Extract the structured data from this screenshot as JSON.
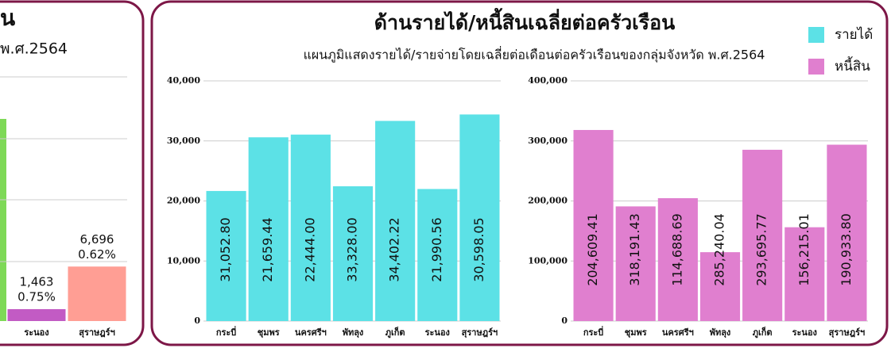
{
  "header": {
    "title": "ด้านรายได้/หนี้สินเฉลี่ยต่อครัวเรือน",
    "subtitle": "แผนภูมิแสดงรายได้/รายจ่ายโดยเฉลี่ยต่อเดือนต่อครัวเรือนของกลุ่มจังหวัด พ.ศ.2564",
    "legend": [
      {
        "name": "รายได้",
        "color": "#5ce1e6"
      },
      {
        "name": "หนี้สิน",
        "color": "#e07fcf"
      }
    ]
  },
  "left_panel": {
    "title": "น",
    "subtitle": "พ.ศ.2564"
  },
  "chart_data": [
    {
      "type": "bar",
      "categories": [
        "ระนอง",
        "สุราษฎร์ฯ"
      ],
      "values": [
        1463,
        6696
      ],
      "value_labels": [
        "1,463",
        "6,696"
      ],
      "percent_labels": [
        "0.75%",
        "0.62%"
      ],
      "colors": [
        "#c25bc4",
        "#ff9e94"
      ],
      "ylim": [
        0,
        30000
      ]
    },
    {
      "type": "bar",
      "categories": [
        "กระบี่",
        "ชุมพร",
        "นครศรีฯ",
        "พัทลุง",
        "ภูเก็ต",
        "ระนอง",
        "สุราษฎร์ฯ"
      ],
      "values": [
        21659.44,
        30598.05,
        31052.8,
        22444.0,
        33328.0,
        21990.56,
        34402.22
      ],
      "annotations": [
        "31,052.80",
        "21,659.44",
        "22,444.00",
        "33,328.00",
        "34,402.22",
        "21,990.56",
        "30,598.05"
      ],
      "color": "#5ce1e6",
      "ylim": [
        0,
        40000
      ],
      "yticks": [
        0,
        {
          "value": 10000,
          "label": "10,000"
        },
        {
          "value": 20000,
          "label": "20,000"
        },
        {
          "value": 30000,
          "label": "30,000"
        },
        {
          "value": 40000,
          "label": "40,000"
        }
      ]
    },
    {
      "type": "bar",
      "categories": [
        "กระบี่",
        "ชุมพร",
        "นครศรีฯ",
        "พัทลุง",
        "ภูเก็ต",
        "ระนอง",
        "สุราษฎร์ฯ"
      ],
      "values": [
        318191.43,
        190933.8,
        204609.41,
        114688.69,
        285240.04,
        156215.01,
        293695.77
      ],
      "annotations": [
        "204,609.41",
        "318,191.43",
        "114,688.69",
        "285,240.04",
        "293,695.77",
        "156,215.01",
        "190,933.80"
      ],
      "color": "#e07fcf",
      "ylim": [
        0,
        400000
      ],
      "yticks": [
        0,
        {
          "value": 100000,
          "label": "100,000"
        },
        {
          "value": 200000,
          "label": "200,000"
        },
        {
          "value": 300000,
          "label": "300,000"
        },
        {
          "value": 400000,
          "label": "400,000"
        }
      ]
    }
  ]
}
